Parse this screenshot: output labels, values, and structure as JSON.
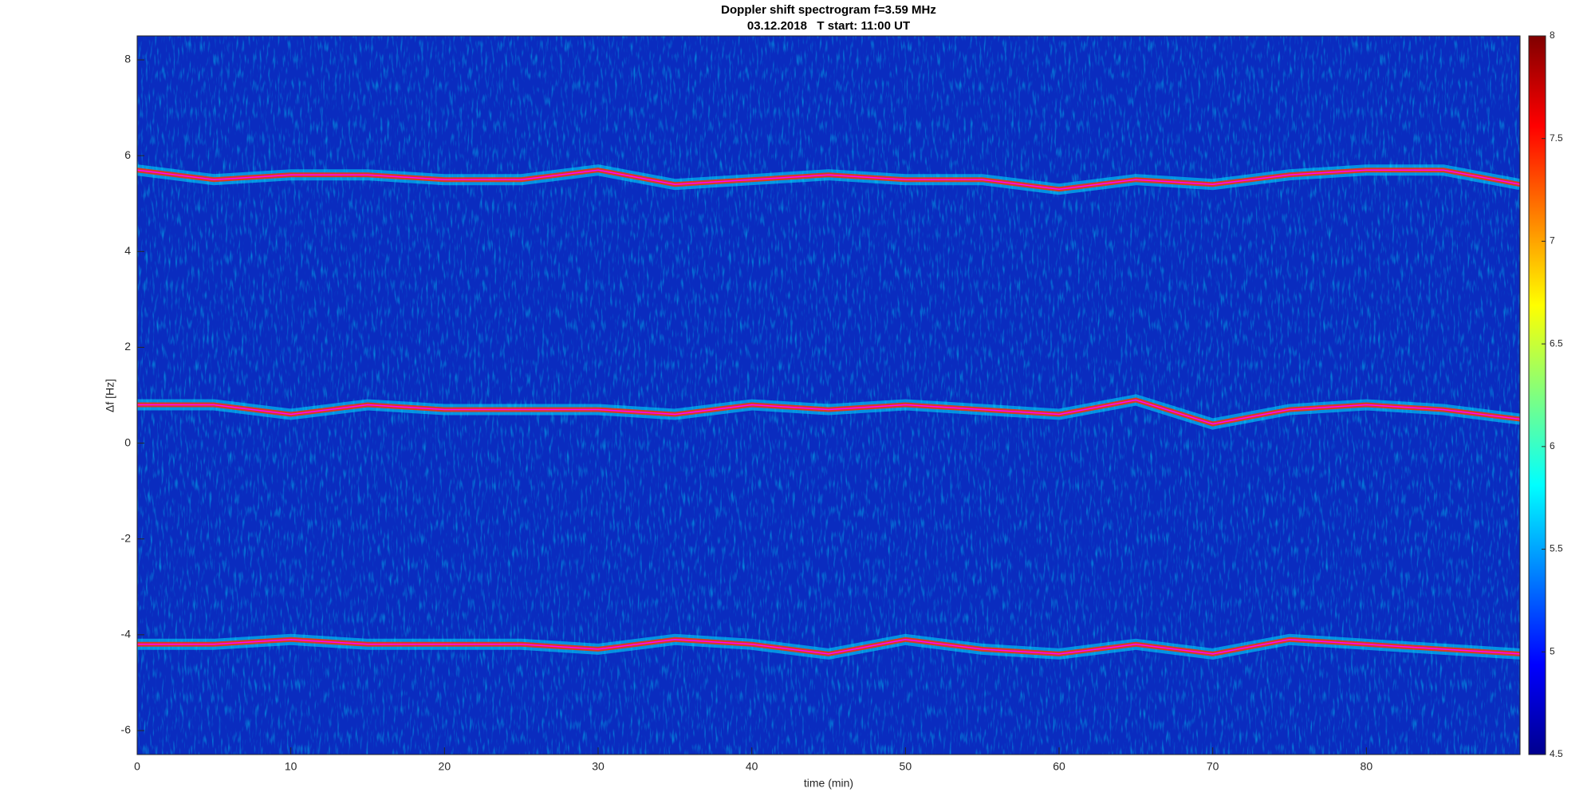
{
  "chart_data": {
    "type": "spectrogram",
    "title": "Doppler shift spectrogram f=3.59 MHz",
    "subtitle": "03.12.2018   T start: 11:00 UT",
    "xlabel": "time (min)",
    "ylabel": "Δf [Hz]",
    "xlim": [
      0,
      90
    ],
    "ylim": [
      -6.5,
      8.5
    ],
    "xticks": [
      0,
      10,
      20,
      30,
      40,
      50,
      60,
      70,
      80
    ],
    "yticks": [
      -6,
      -4,
      -2,
      0,
      2,
      4,
      6,
      8
    ],
    "clim": [
      4.5,
      8
    ],
    "cticks": [
      4.5,
      5,
      5.5,
      6,
      6.5,
      7,
      7.5,
      8
    ],
    "x": [
      0,
      5,
      10,
      15,
      20,
      25,
      30,
      35,
      40,
      45,
      50,
      55,
      60,
      65,
      70,
      75,
      80,
      85,
      90
    ],
    "series": [
      {
        "color": "#ff00ff",
        "values": [
          5.7,
          5.5,
          5.6,
          5.6,
          5.5,
          5.5,
          5.7,
          5.4,
          5.5,
          5.6,
          5.5,
          5.5,
          5.3,
          5.5,
          5.4,
          5.6,
          5.7,
          5.7,
          5.4
        ]
      },
      {
        "color": "#ff00ff",
        "values": [
          0.8,
          0.8,
          0.6,
          0.8,
          0.7,
          0.7,
          0.7,
          0.6,
          0.8,
          0.7,
          0.8,
          0.7,
          0.6,
          0.9,
          0.4,
          0.7,
          0.8,
          0.7,
          0.5
        ]
      },
      {
        "color": "#ff00ff",
        "values": [
          -4.2,
          -4.2,
          -4.1,
          -4.2,
          -4.2,
          -4.2,
          -4.3,
          -4.1,
          -4.2,
          -4.4,
          -4.1,
          -4.3,
          -4.4,
          -4.2,
          -4.4,
          -4.1,
          -4.2,
          -4.3,
          -4.4
        ]
      }
    ]
  }
}
